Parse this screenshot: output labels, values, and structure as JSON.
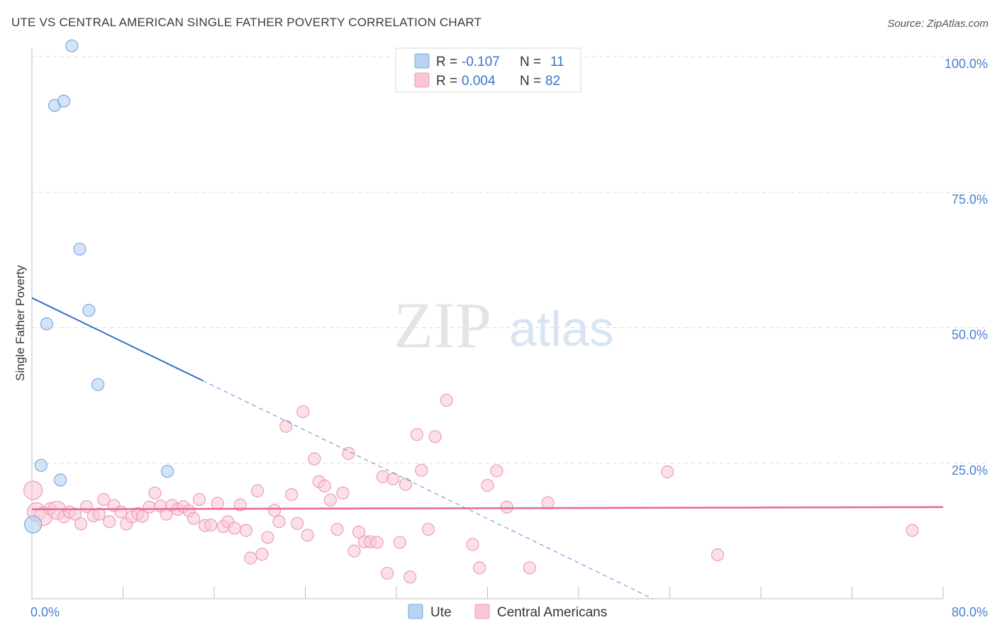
{
  "title": "UTE VS CENTRAL AMERICAN SINGLE FATHER POVERTY CORRELATION CHART",
  "source": "Source: ZipAtlas.com",
  "watermark": {
    "zip": "ZIP",
    "atlas": "atlas"
  },
  "colors": {
    "ute_fill": "#b8d2f2",
    "ute_stroke": "#7ea8df",
    "ute_line": "#2f6fce",
    "central_fill": "#f9c6d5",
    "central_stroke": "#ee9db5",
    "central_line": "#e8678f",
    "grid": "#dddddd",
    "axis_text": "#4a7fcf"
  },
  "legend": {
    "rows": [
      {
        "r_label": "R =",
        "r_value": "-0.107",
        "n_label": "N =",
        "n_value": "11"
      },
      {
        "r_label": "R =",
        "r_value": "0.004",
        "n_label": "N =",
        "n_value": "82"
      }
    ]
  },
  "chart_data": {
    "type": "scatter",
    "title": "UTE VS CENTRAL AMERICAN SINGLE FATHER POVERTY CORRELATION CHART",
    "xlabel": "",
    "ylabel": "Single Father Poverty",
    "xlim": [
      0,
      80
    ],
    "ylim": [
      0,
      100
    ],
    "x_tick_labels": [
      "0.0%",
      "80.0%"
    ],
    "y_ticks": [
      25,
      50,
      75,
      100
    ],
    "y_tick_labels": [
      "25.0%",
      "50.0%",
      "75.0%",
      "100.0%"
    ],
    "grid": true,
    "series": [
      {
        "name": "Ute",
        "r": -0.107,
        "n": 11,
        "points": [
          {
            "x": 3.5,
            "y": 102.0
          },
          {
            "x": 2.0,
            "y": 91.0
          },
          {
            "x": 2.8,
            "y": 91.8
          },
          {
            "x": 4.2,
            "y": 64.5
          },
          {
            "x": 5.0,
            "y": 53.2
          },
          {
            "x": 1.3,
            "y": 50.7
          },
          {
            "x": 5.8,
            "y": 39.5
          },
          {
            "x": 0.8,
            "y": 24.6
          },
          {
            "x": 2.5,
            "y": 21.9
          },
          {
            "x": 11.9,
            "y": 23.5
          },
          {
            "x": 0.1,
            "y": 13.7,
            "size": "large"
          }
        ],
        "trend": {
          "x_start": 0,
          "y_start": 55.5,
          "x_solid_end": 15,
          "x_end": 54.5,
          "y_end": 0
        }
      },
      {
        "name": "Central Americans",
        "r": 0.004,
        "n": 82,
        "points": [
          {
            "x": 0.1,
            "y": 20.0,
            "size": "large"
          },
          {
            "x": 0.4,
            "y": 16.0,
            "size": "large"
          },
          {
            "x": 1.0,
            "y": 15.2,
            "size": "large"
          },
          {
            "x": 1.6,
            "y": 16.6
          },
          {
            "x": 2.2,
            "y": 16.3,
            "size": "large"
          },
          {
            "x": 2.8,
            "y": 15.1
          },
          {
            "x": 3.3,
            "y": 16.0
          },
          {
            "x": 3.8,
            "y": 15.6
          },
          {
            "x": 4.3,
            "y": 13.8
          },
          {
            "x": 4.8,
            "y": 17.0
          },
          {
            "x": 5.4,
            "y": 15.3
          },
          {
            "x": 5.9,
            "y": 15.6
          },
          {
            "x": 6.3,
            "y": 18.3
          },
          {
            "x": 6.8,
            "y": 14.2
          },
          {
            "x": 7.2,
            "y": 17.2
          },
          {
            "x": 7.8,
            "y": 16.0
          },
          {
            "x": 8.3,
            "y": 13.8
          },
          {
            "x": 8.8,
            "y": 15.1
          },
          {
            "x": 9.3,
            "y": 15.7
          },
          {
            "x": 9.7,
            "y": 15.2
          },
          {
            "x": 10.3,
            "y": 16.9
          },
          {
            "x": 10.8,
            "y": 19.5
          },
          {
            "x": 11.3,
            "y": 17.1
          },
          {
            "x": 11.8,
            "y": 15.6
          },
          {
            "x": 12.3,
            "y": 17.2
          },
          {
            "x": 12.8,
            "y": 16.5
          },
          {
            "x": 13.3,
            "y": 17.0
          },
          {
            "x": 13.8,
            "y": 16.2
          },
          {
            "x": 14.2,
            "y": 14.8
          },
          {
            "x": 14.7,
            "y": 18.3
          },
          {
            "x": 15.2,
            "y": 13.5
          },
          {
            "x": 15.7,
            "y": 13.6
          },
          {
            "x": 16.3,
            "y": 17.6
          },
          {
            "x": 16.8,
            "y": 13.3
          },
          {
            "x": 17.2,
            "y": 14.2
          },
          {
            "x": 17.8,
            "y": 13.0
          },
          {
            "x": 18.3,
            "y": 17.3
          },
          {
            "x": 18.8,
            "y": 12.6
          },
          {
            "x": 19.2,
            "y": 7.5
          },
          {
            "x": 19.8,
            "y": 19.9
          },
          {
            "x": 20.2,
            "y": 8.2
          },
          {
            "x": 20.7,
            "y": 11.3
          },
          {
            "x": 21.3,
            "y": 16.3
          },
          {
            "x": 21.7,
            "y": 14.2
          },
          {
            "x": 22.3,
            "y": 31.8
          },
          {
            "x": 22.8,
            "y": 19.2
          },
          {
            "x": 23.3,
            "y": 13.9
          },
          {
            "x": 23.8,
            "y": 34.5
          },
          {
            "x": 24.2,
            "y": 11.7
          },
          {
            "x": 24.8,
            "y": 25.8
          },
          {
            "x": 25.2,
            "y": 21.6
          },
          {
            "x": 25.7,
            "y": 20.8
          },
          {
            "x": 26.2,
            "y": 18.2
          },
          {
            "x": 26.8,
            "y": 12.8
          },
          {
            "x": 27.3,
            "y": 19.5
          },
          {
            "x": 27.8,
            "y": 26.8
          },
          {
            "x": 28.3,
            "y": 8.8
          },
          {
            "x": 28.7,
            "y": 12.3
          },
          {
            "x": 29.2,
            "y": 10.5
          },
          {
            "x": 29.7,
            "y": 10.5
          },
          {
            "x": 30.3,
            "y": 10.4
          },
          {
            "x": 30.8,
            "y": 22.5
          },
          {
            "x": 31.2,
            "y": 4.7
          },
          {
            "x": 31.7,
            "y": 22.1
          },
          {
            "x": 32.3,
            "y": 10.4
          },
          {
            "x": 32.8,
            "y": 21.1
          },
          {
            "x": 33.2,
            "y": 4.0
          },
          {
            "x": 33.8,
            "y": 30.3
          },
          {
            "x": 34.2,
            "y": 23.7
          },
          {
            "x": 34.8,
            "y": 12.8
          },
          {
            "x": 35.4,
            "y": 29.9
          },
          {
            "x": 36.4,
            "y": 36.6
          },
          {
            "x": 38.7,
            "y": 10.0
          },
          {
            "x": 39.3,
            "y": 5.7
          },
          {
            "x": 40.0,
            "y": 20.9
          },
          {
            "x": 40.8,
            "y": 23.6
          },
          {
            "x": 41.7,
            "y": 16.9
          },
          {
            "x": 43.7,
            "y": 5.7
          },
          {
            "x": 45.3,
            "y": 17.7
          },
          {
            "x": 55.8,
            "y": 23.4
          },
          {
            "x": 60.2,
            "y": 8.1
          },
          {
            "x": 77.3,
            "y": 12.6
          }
        ],
        "trend": {
          "x_start": 0,
          "y_start": 16.5,
          "x_end": 80,
          "y_end": 16.9
        }
      }
    ],
    "legend_position": "top-center",
    "bottom_legend": [
      "Ute",
      "Central Americans"
    ]
  }
}
